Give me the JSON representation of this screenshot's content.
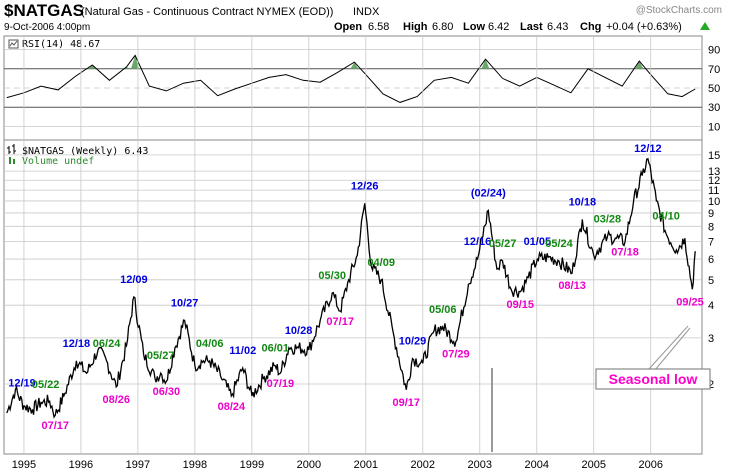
{
  "header": {
    "symbol": "$NATGAS",
    "description": "(Natural Gas - Continuous Contract NYMEX (EOD))",
    "exchange": "INDX",
    "copyright": "@StockCharts.com",
    "date": "9-Oct-2006 4:00pm",
    "quote": {
      "open_label": "Open",
      "open": "6.58",
      "high_label": "High",
      "high": "6.80",
      "low_label": "Low",
      "low": "6.42",
      "last_label": "Last",
      "last": "6.43",
      "chg_label": "Chg",
      "chg": "+0.04 (+0.63%)",
      "chg_icon": "up-triangle-icon"
    }
  },
  "rsi_panel": {
    "label": "RSI(14) 48.67",
    "levels": [
      90,
      70,
      50,
      30,
      10
    ]
  },
  "price_panel": {
    "legend_main": "$NATGAS (Weekly) 6.43",
    "legend_volume": "Volume undef",
    "y_ticks": [
      15,
      13,
      12,
      11,
      10,
      9,
      8,
      7,
      6,
      5,
      4,
      3,
      2
    ],
    "x_labels": [
      "1995",
      "1996",
      "1997",
      "1998",
      "1999",
      "2000",
      "2001",
      "2002",
      "2003",
      "2004",
      "2005",
      "2006"
    ]
  },
  "colors": {
    "peak": "#0000dd",
    "turn": "#118811",
    "low": "#ee00cc",
    "price": "#000000",
    "grid": "#c8c8c8"
  },
  "annotations": [
    {
      "text": "12/19",
      "t": 1994.78,
      "dy": -14,
      "color": "peak"
    },
    {
      "text": "05/22",
      "t": 1995.38,
      "dy": -14,
      "color": "turn"
    },
    {
      "text": "07/17",
      "t": 1995.55,
      "dy": 14,
      "color": "low"
    },
    {
      "text": "12/18",
      "t": 1995.92,
      "dy": -14,
      "color": "peak"
    },
    {
      "text": "06/24",
      "t": 1996.45,
      "dy": -14,
      "color": "turn"
    },
    {
      "text": "08/26",
      "t": 1996.62,
      "dy": 16,
      "color": "low"
    },
    {
      "text": "12/09",
      "t": 1996.93,
      "dy": -14,
      "color": "peak"
    },
    {
      "text": "05/27",
      "t": 1997.4,
      "dy": -14,
      "color": "turn"
    },
    {
      "text": "06/30",
      "t": 1997.5,
      "dy": 14,
      "color": "low"
    },
    {
      "text": "10/27",
      "t": 1997.82,
      "dy": -14,
      "color": "peak"
    },
    {
      "text": "04/06",
      "t": 1998.26,
      "dy": -14,
      "color": "turn"
    },
    {
      "text": "08/24",
      "t": 1998.64,
      "dy": 14,
      "color": "low"
    },
    {
      "text": "11/02",
      "t": 1998.84,
      "dy": -14,
      "color": "peak"
    },
    {
      "text": "06/01",
      "t": 1999.41,
      "dy": -14,
      "color": "turn"
    },
    {
      "text": "07/19",
      "t": 1999.5,
      "dy": 14,
      "color": "low"
    },
    {
      "text": "10/28",
      "t": 1999.82,
      "dy": -14,
      "color": "peak"
    },
    {
      "text": "05/30",
      "t": 2000.41,
      "dy": -14,
      "color": "turn"
    },
    {
      "text": "07/17",
      "t": 2000.55,
      "dy": 14,
      "color": "low"
    },
    {
      "text": "12/26",
      "t": 2000.98,
      "dy": -14,
      "color": "peak"
    },
    {
      "text": "04/09",
      "t": 2001.27,
      "dy": -14,
      "color": "turn"
    },
    {
      "text": "09/17",
      "t": 2001.71,
      "dy": 16,
      "color": "low"
    },
    {
      "text": "10/29",
      "t": 2001.82,
      "dy": -14,
      "color": "peak"
    },
    {
      "text": "05/06",
      "t": 2002.35,
      "dy": -14,
      "color": "turn"
    },
    {
      "text": "07/29",
      "t": 2002.58,
      "dy": 16,
      "color": "low"
    },
    {
      "text": "12/16",
      "t": 2002.96,
      "dy": -14,
      "color": "peak"
    },
    {
      "text": "(02/24)",
      "t": 2003.15,
      "dy": -14,
      "color": "peak"
    },
    {
      "text": "05/27",
      "t": 2003.4,
      "dy": -14,
      "color": "turn"
    },
    {
      "text": "09/15",
      "t": 2003.71,
      "dy": 16,
      "color": "low"
    },
    {
      "text": "01/05",
      "t": 2004.01,
      "dy": -14,
      "color": "peak"
    },
    {
      "text": "05/24",
      "t": 2004.39,
      "dy": -14,
      "color": "turn"
    },
    {
      "text": "08/13",
      "t": 2004.62,
      "dy": 16,
      "color": "low"
    },
    {
      "text": "10/18",
      "t": 2004.8,
      "dy": -14,
      "color": "peak"
    },
    {
      "text": "03/28",
      "t": 2005.24,
      "dy": -14,
      "color": "turn"
    },
    {
      "text": "07/18",
      "t": 2005.55,
      "dy": 14,
      "color": "low"
    },
    {
      "text": "12/12",
      "t": 2005.95,
      "dy": -14,
      "color": "peak"
    },
    {
      "text": "04/10",
      "t": 2006.27,
      "dy": -14,
      "color": "turn"
    },
    {
      "text": "09/25",
      "t": 2006.73,
      "dy": 16,
      "color": "low"
    }
  ],
  "callout": {
    "text": "Seasonal low"
  },
  "chart_data": [
    {
      "type": "line",
      "title": "RSI(14) 48.67",
      "ylim": [
        0,
        100
      ],
      "y_ticks": [
        90,
        70,
        50,
        30,
        10
      ],
      "x": [
        1994.7,
        1995.0,
        1995.3,
        1995.6,
        1995.9,
        1996.2,
        1996.5,
        1996.8,
        1996.95,
        1997.2,
        1997.5,
        1997.8,
        1998.1,
        1998.4,
        1998.7,
        1999.0,
        1999.3,
        1999.6,
        1999.9,
        2000.2,
        2000.5,
        2000.8,
        2001.0,
        2001.3,
        2001.6,
        2001.9,
        2002.2,
        2002.5,
        2002.8,
        2003.1,
        2003.4,
        2003.7,
        2004.0,
        2004.3,
        2004.6,
        2004.9,
        2005.2,
        2005.5,
        2005.8,
        2006.0,
        2006.3,
        2006.55,
        2006.78
      ],
      "values": [
        40,
        45,
        52,
        48,
        62,
        74,
        58,
        72,
        84,
        52,
        47,
        55,
        58,
        42,
        49,
        55,
        61,
        64,
        58,
        56,
        66,
        77,
        64,
        44,
        35,
        41,
        58,
        61,
        55,
        80,
        60,
        52,
        61,
        53,
        45,
        70,
        61,
        52,
        78,
        64,
        44,
        41,
        49
      ]
    },
    {
      "type": "line",
      "title": "$NATGAS (Weekly) 6.43",
      "yscale": "log",
      "ylim": [
        1.1,
        16.5
      ],
      "x": [
        1994.7,
        1994.85,
        1995.0,
        1995.15,
        1995.3,
        1995.45,
        1995.55,
        1995.7,
        1995.92,
        1996.1,
        1996.3,
        1996.45,
        1996.62,
        1996.8,
        1996.93,
        1997.1,
        1997.3,
        1997.4,
        1997.5,
        1997.65,
        1997.82,
        1998.0,
        1998.15,
        1998.26,
        1998.45,
        1998.64,
        1998.84,
        1999.0,
        1999.2,
        1999.41,
        1999.5,
        1999.65,
        1999.82,
        2000.0,
        2000.2,
        2000.41,
        2000.55,
        2000.7,
        2000.85,
        2000.98,
        2001.1,
        2001.27,
        2001.5,
        2001.71,
        2001.82,
        2002.0,
        2002.2,
        2002.35,
        2002.58,
        2002.8,
        2002.96,
        2003.15,
        2003.3,
        2003.4,
        2003.55,
        2003.71,
        2003.85,
        2004.01,
        2004.2,
        2004.39,
        2004.62,
        2004.8,
        2005.0,
        2005.24,
        2005.4,
        2005.55,
        2005.7,
        2005.85,
        2005.95,
        2006.1,
        2006.27,
        2006.45,
        2006.6,
        2006.73,
        2006.78
      ],
      "values": [
        1.55,
        1.9,
        1.65,
        1.6,
        1.7,
        1.72,
        1.52,
        1.8,
        2.45,
        2.2,
        2.7,
        2.45,
        1.95,
        2.8,
        4.3,
        2.6,
        2.1,
        2.2,
        2.05,
        2.75,
        3.5,
        2.35,
        2.45,
        2.45,
        2.15,
        1.8,
        2.3,
        1.8,
        2.1,
        2.35,
        2.2,
        2.75,
        2.75,
        2.7,
        3.5,
        4.45,
        3.8,
        5.0,
        6.2,
        9.8,
        5.6,
        5.0,
        3.0,
        1.9,
        2.5,
        2.4,
        3.2,
        3.3,
        2.9,
        4.8,
        6.0,
        9.2,
        5.5,
        5.9,
        4.6,
        4.5,
        5.1,
        6.0,
        6.1,
        5.9,
        5.3,
        8.5,
        6.2,
        7.3,
        7.2,
        7.0,
        10.0,
        12.5,
        14.5,
        10.0,
        7.5,
        6.5,
        7.2,
        4.6,
        6.43
      ]
    }
  ]
}
